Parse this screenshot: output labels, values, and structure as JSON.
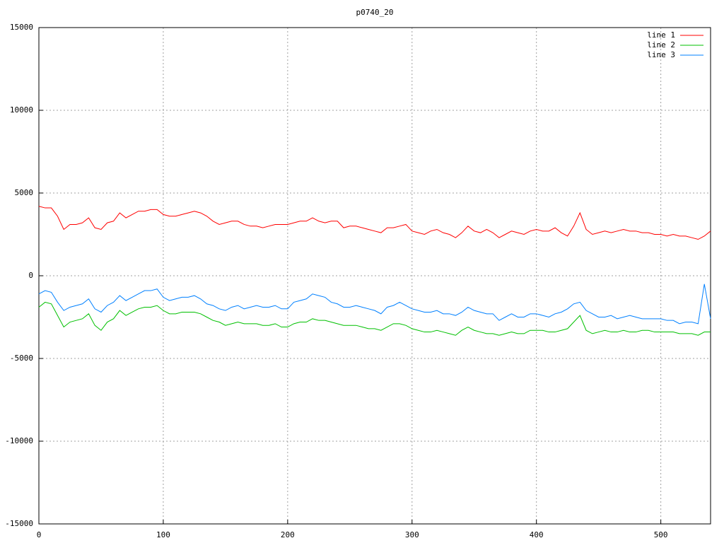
{
  "chart_data": {
    "type": "line",
    "title": "p0740_20",
    "x": [
      0,
      5,
      10,
      15,
      20,
      25,
      30,
      35,
      40,
      45,
      50,
      55,
      60,
      65,
      70,
      75,
      80,
      85,
      90,
      95,
      100,
      105,
      110,
      115,
      120,
      125,
      130,
      135,
      140,
      145,
      150,
      155,
      160,
      165,
      170,
      175,
      180,
      185,
      190,
      195,
      200,
      205,
      210,
      215,
      220,
      225,
      230,
      235,
      240,
      245,
      250,
      255,
      260,
      265,
      270,
      275,
      280,
      285,
      290,
      295,
      300,
      305,
      310,
      315,
      320,
      325,
      330,
      335,
      340,
      345,
      350,
      355,
      360,
      365,
      370,
      375,
      380,
      385,
      390,
      395,
      400,
      405,
      410,
      415,
      420,
      425,
      430,
      435,
      440,
      445,
      450,
      455,
      460,
      465,
      470,
      475,
      480,
      485,
      490,
      495,
      500,
      505,
      510,
      515,
      520,
      525,
      530,
      535,
      540
    ],
    "series": [
      {
        "name": "line 1",
        "color": "#ff0000",
        "values": [
          4200,
          4100,
          4100,
          3600,
          2800,
          3100,
          3100,
          3200,
          3500,
          2900,
          2800,
          3200,
          3300,
          3800,
          3500,
          3700,
          3900,
          3900,
          4000,
          4000,
          3700,
          3600,
          3600,
          3700,
          3800,
          3900,
          3800,
          3600,
          3300,
          3100,
          3200,
          3300,
          3300,
          3100,
          3000,
          3000,
          2900,
          3000,
          3100,
          3100,
          3100,
          3200,
          3300,
          3300,
          3500,
          3300,
          3200,
          3300,
          3300,
          2900,
          3000,
          3000,
          2900,
          2800,
          2700,
          2600,
          2900,
          2900,
          3000,
          3100,
          2700,
          2600,
          2500,
          2700,
          2800,
          2600,
          2500,
          2300,
          2600,
          3000,
          2700,
          2600,
          2800,
          2600,
          2300,
          2500,
          2700,
          2600,
          2500,
          2700,
          2800,
          2700,
          2700,
          2900,
          2600,
          2400,
          3000,
          3800,
          2800,
          2500,
          2600,
          2700,
          2600,
          2700,
          2800,
          2700,
          2700,
          2600,
          2600,
          2500,
          2500,
          2400,
          2500,
          2400,
          2400,
          2300,
          2200,
          2400,
          2700
        ]
      },
      {
        "name": "line 2",
        "color": "#00c000",
        "values": [
          -1900,
          -1600,
          -1700,
          -2400,
          -3100,
          -2800,
          -2700,
          -2600,
          -2300,
          -3000,
          -3300,
          -2800,
          -2600,
          -2100,
          -2400,
          -2200,
          -2000,
          -1900,
          -1900,
          -1800,
          -2100,
          -2300,
          -2300,
          -2200,
          -2200,
          -2200,
          -2300,
          -2500,
          -2700,
          -2800,
          -3000,
          -2900,
          -2800,
          -2900,
          -2900,
          -2900,
          -3000,
          -3000,
          -2900,
          -3100,
          -3100,
          -2900,
          -2800,
          -2800,
          -2600,
          -2700,
          -2700,
          -2800,
          -2900,
          -3000,
          -3000,
          -3000,
          -3100,
          -3200,
          -3200,
          -3300,
          -3100,
          -2900,
          -2900,
          -3000,
          -3200,
          -3300,
          -3400,
          -3400,
          -3300,
          -3400,
          -3500,
          -3600,
          -3300,
          -3100,
          -3300,
          -3400,
          -3500,
          -3500,
          -3600,
          -3500,
          -3400,
          -3500,
          -3500,
          -3300,
          -3300,
          -3300,
          -3400,
          -3400,
          -3300,
          -3200,
          -2800,
          -2400,
          -3300,
          -3500,
          -3400,
          -3300,
          -3400,
          -3400,
          -3300,
          -3400,
          -3400,
          -3300,
          -3300,
          -3400,
          -3400,
          -3400,
          -3400,
          -3500,
          -3500,
          -3500,
          -3600,
          -3400,
          -3400
        ]
      },
      {
        "name": "line 3",
        "color": "#0080ff",
        "values": [
          -1100,
          -900,
          -1000,
          -1600,
          -2100,
          -1900,
          -1800,
          -1700,
          -1400,
          -2000,
          -2200,
          -1800,
          -1600,
          -1200,
          -1500,
          -1300,
          -1100,
          -900,
          -900,
          -800,
          -1300,
          -1500,
          -1400,
          -1300,
          -1300,
          -1200,
          -1400,
          -1700,
          -1800,
          -2000,
          -2100,
          -1900,
          -1800,
          -2000,
          -1900,
          -1800,
          -1900,
          -1900,
          -1800,
          -2000,
          -2000,
          -1600,
          -1500,
          -1400,
          -1100,
          -1200,
          -1300,
          -1600,
          -1700,
          -1900,
          -1900,
          -1800,
          -1900,
          -2000,
          -2100,
          -2300,
          -1900,
          -1800,
          -1600,
          -1800,
          -2000,
          -2100,
          -2200,
          -2200,
          -2100,
          -2300,
          -2300,
          -2400,
          -2200,
          -1900,
          -2100,
          -2200,
          -2300,
          -2300,
          -2700,
          -2500,
          -2300,
          -2500,
          -2500,
          -2300,
          -2300,
          -2400,
          -2500,
          -2300,
          -2200,
          -2000,
          -1700,
          -1600,
          -2100,
          -2300,
          -2500,
          -2500,
          -2400,
          -2600,
          -2500,
          -2400,
          -2500,
          -2600,
          -2600,
          -2600,
          -2600,
          -2700,
          -2700,
          -2900,
          -2800,
          -2800,
          -2900,
          -500,
          -2600
        ]
      }
    ],
    "xlim": [
      0,
      540
    ],
    "xticks": [
      0,
      100,
      200,
      300,
      400,
      500
    ],
    "ylim": [
      -15000,
      15000
    ],
    "yticks": [
      -15000,
      -10000,
      -5000,
      0,
      5000,
      10000,
      15000
    ],
    "grid": true,
    "legend": "top-right"
  }
}
